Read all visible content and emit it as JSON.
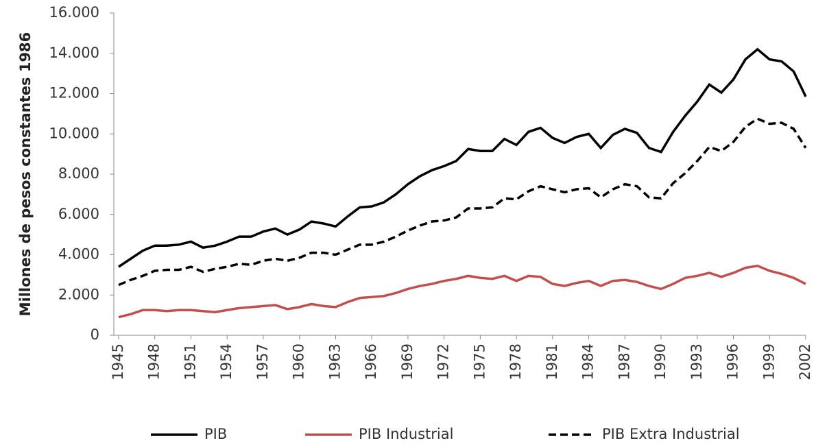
{
  "chart_data": {
    "type": "line",
    "y_label": "Millones de pesos constantes 1986",
    "x": [
      1945,
      1946,
      1947,
      1948,
      1949,
      1950,
      1951,
      1952,
      1953,
      1954,
      1955,
      1956,
      1957,
      1958,
      1959,
      1960,
      1961,
      1962,
      1963,
      1964,
      1965,
      1966,
      1967,
      1968,
      1969,
      1970,
      1971,
      1972,
      1973,
      1974,
      1975,
      1976,
      1977,
      1978,
      1979,
      1980,
      1981,
      1982,
      1983,
      1984,
      1985,
      1986,
      1987,
      1988,
      1989,
      1990,
      1991,
      1992,
      1993,
      1994,
      1995,
      1996,
      1997,
      1998,
      1999,
      2000,
      2001,
      2002
    ],
    "xlim": [
      1945,
      2002
    ],
    "xticks": [
      1945,
      1948,
      1951,
      1954,
      1957,
      1960,
      1963,
      1966,
      1969,
      1972,
      1975,
      1978,
      1981,
      1984,
      1987,
      1990,
      1993,
      1996,
      1999,
      2002
    ],
    "ylim": [
      0,
      16000
    ],
    "yticks": [
      0,
      {
        "value": 2000,
        "label": "2.000"
      },
      {
        "value": 4000,
        "label": "4.000"
      },
      {
        "value": 6000,
        "label": "6.000"
      },
      {
        "value": 8000,
        "label": "8.000"
      },
      {
        "value": 10000,
        "label": "10.000"
      },
      {
        "value": 12000,
        "label": "12.000"
      },
      {
        "value": 14000,
        "label": "14.000"
      },
      {
        "value": 16000,
        "label": "16.000"
      }
    ],
    "series": [
      {
        "name": "PIB",
        "color": "#000000",
        "dash": false,
        "values": [
          3400,
          3800,
          4200,
          4450,
          4450,
          4500,
          4650,
          4350,
          4450,
          4650,
          4900,
          4900,
          5150,
          5300,
          5000,
          5250,
          5650,
          5550,
          5400,
          5900,
          6350,
          6400,
          6600,
          7000,
          7500,
          7900,
          8200,
          8400,
          8650,
          9250,
          9150,
          9150,
          9750,
          9450,
          10100,
          10300,
          9800,
          9550,
          9850,
          10000,
          9300,
          9950,
          10250,
          10050,
          9300,
          9100,
          10100,
          10900,
          11600,
          12450,
          12050,
          12700,
          13700,
          14200,
          13700,
          13600,
          13100,
          11850
        ]
      },
      {
        "name": "PIB Industrial",
        "color": "#c0504d",
        "dash": false,
        "values": [
          900,
          1050,
          1250,
          1250,
          1200,
          1250,
          1250,
          1200,
          1150,
          1250,
          1350,
          1400,
          1450,
          1500,
          1300,
          1400,
          1550,
          1450,
          1400,
          1650,
          1850,
          1900,
          1950,
          2100,
          2300,
          2450,
          2550,
          2700,
          2800,
          2950,
          2850,
          2800,
          2950,
          2700,
          2950,
          2900,
          2550,
          2450,
          2600,
          2700,
          2450,
          2700,
          2750,
          2650,
          2450,
          2300,
          2550,
          2850,
          2950,
          3100,
          2900,
          3100,
          3350,
          3450,
          3200,
          3050,
          2850,
          2550
        ]
      },
      {
        "name": "PIB Extra Industrial",
        "color": "#000000",
        "dash": true,
        "values": [
          2500,
          2750,
          2950,
          3200,
          3250,
          3250,
          3400,
          3150,
          3300,
          3400,
          3550,
          3500,
          3700,
          3800,
          3700,
          3850,
          4100,
          4100,
          4000,
          4250,
          4500,
          4500,
          4650,
          4900,
          5200,
          5450,
          5650,
          5700,
          5850,
          6300,
          6300,
          6350,
          6800,
          6750,
          7150,
          7400,
          7250,
          7100,
          7250,
          7300,
          6850,
          7250,
          7500,
          7400,
          6850,
          6800,
          7550,
          8050,
          8650,
          9350,
          9150,
          9600,
          10350,
          10750,
          10500,
          10550,
          10250,
          9300
        ]
      }
    ]
  }
}
